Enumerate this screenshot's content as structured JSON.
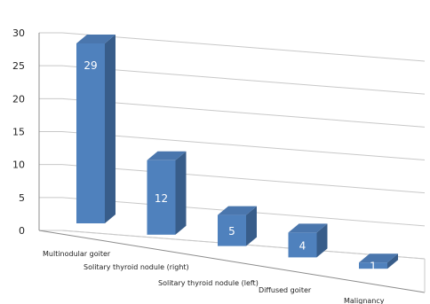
{
  "chart_data": {
    "type": "bar",
    "categories": [
      "Multinodular goiter",
      "Solitary thyroid nodule (right)",
      "Solitary thyroid nodule (left)",
      "Diffused goiter",
      "Malignancy"
    ],
    "values": [
      29,
      12,
      5,
      4,
      1
    ],
    "data_labels": [
      "29",
      "12",
      "5",
      "4",
      "1"
    ],
    "ylim": [
      0,
      30
    ],
    "yticks": [
      "0",
      "5",
      "10",
      "15",
      "20",
      "25",
      "30"
    ],
    "title": "",
    "xlabel": "",
    "ylabel": "",
    "grid": true,
    "legend": "none",
    "style": "3d-perspective",
    "colors": {
      "bar_front": "#4f81bd",
      "bar_side": "#385d8a",
      "bar_top": "#4a76ad",
      "gridline": "#c8c8c8",
      "axis": "#8c8c8c"
    }
  }
}
